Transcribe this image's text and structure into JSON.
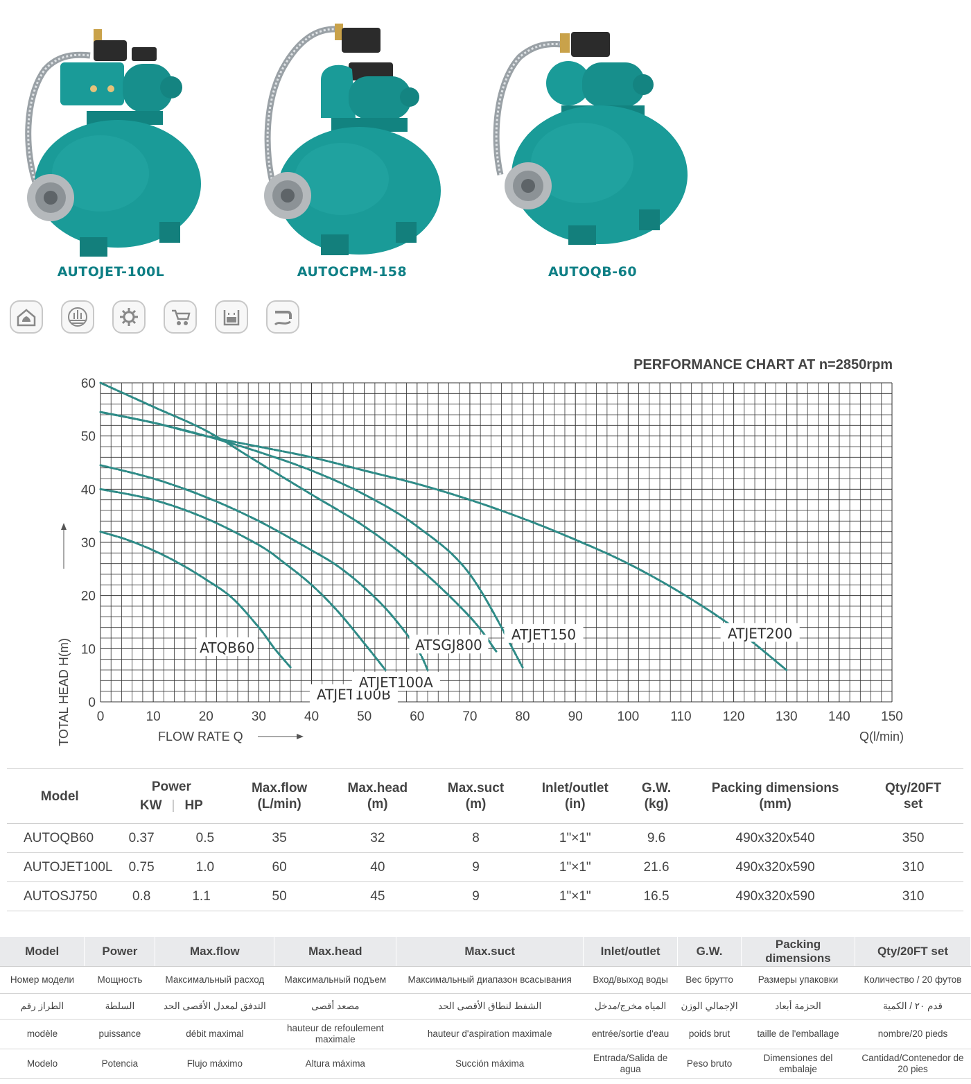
{
  "products": [
    {
      "name": "AUTOJET-100L"
    },
    {
      "name": "AUTOCPM-158"
    },
    {
      "name": "AUTOQB-60"
    }
  ],
  "icons": [
    "home-garden-icon",
    "farm-irrigation-icon",
    "gear-icon",
    "wheelbarrow-icon",
    "water-tank-icon",
    "water-outlet-icon"
  ],
  "colors": {
    "brand": "#0e7f85",
    "curve": "#2e8b87",
    "tank": "#1a9b98"
  },
  "chart_data": {
    "type": "line",
    "title": "PERFORMANCE CHART AT n=2850rpm",
    "ylabel": "TOTAL HEAD H(m)",
    "xlabel": "FLOW RATE Q",
    "xunit": "Q(l/min)",
    "xlim": [
      0,
      150
    ],
    "ylim": [
      0,
      60
    ],
    "xticks": [
      0,
      10,
      20,
      30,
      40,
      50,
      60,
      70,
      80,
      90,
      100,
      110,
      120,
      130,
      140,
      150
    ],
    "yticks": [
      0,
      10,
      20,
      30,
      40,
      50,
      60
    ],
    "grid": true,
    "series": [
      {
        "name": "ATQB60",
        "x": [
          0,
          5,
          10,
          15,
          20,
          25,
          30,
          33,
          36
        ],
        "y": [
          32,
          30.5,
          28.5,
          26,
          23,
          19.5,
          14,
          10,
          6.5
        ]
      },
      {
        "name": "ATJET100B",
        "x": [
          0,
          10,
          20,
          30,
          35,
          40,
          45,
          50,
          54
        ],
        "y": [
          40,
          38,
          34.5,
          29.5,
          26,
          22,
          17,
          11,
          6
        ]
      },
      {
        "name": "ATJET100A",
        "x": [
          0,
          10,
          20,
          30,
          40,
          45,
          50,
          55,
          60,
          62
        ],
        "y": [
          44.5,
          42,
          38.5,
          34,
          28.5,
          25.5,
          21.5,
          16.5,
          10,
          6
        ]
      },
      {
        "name": "ATSGJ800",
        "x": [
          0,
          10,
          20,
          30,
          40,
          50,
          60,
          70,
          75
        ],
        "y": [
          60,
          55.5,
          51,
          45,
          39,
          33,
          25.5,
          16,
          9.5
        ]
      },
      {
        "name": "ATJET150",
        "x": [
          0,
          10,
          20,
          30,
          40,
          50,
          60,
          70,
          80
        ],
        "y": [
          54.5,
          52.5,
          50,
          47,
          43.5,
          39,
          33,
          24,
          6.5
        ]
      },
      {
        "name": "ATJET200",
        "x": [
          0,
          10,
          20,
          30,
          40,
          50,
          60,
          70,
          80,
          90,
          100,
          110,
          120,
          130
        ],
        "y": [
          54.5,
          52.5,
          50,
          48,
          46,
          43.5,
          41,
          38,
          34.5,
          30.5,
          26,
          20.5,
          14,
          6
        ]
      }
    ],
    "labels": [
      {
        "text": "ATQB60",
        "series": "ATQB60"
      },
      {
        "text": "ATJET100B",
        "series": "ATJET100B"
      },
      {
        "text": "ATJET100A",
        "series": "ATJET100A"
      },
      {
        "text": "ATSGJ800",
        "series": "ATSGJ800"
      },
      {
        "text": "ATJET150",
        "series": "ATJET150"
      },
      {
        "text": "ATJET200",
        "series": "ATJET200"
      }
    ]
  },
  "specs": {
    "headers": {
      "model": "Model",
      "power": "Power",
      "kw": "KW",
      "hp": "HP",
      "maxflow": [
        "Max.flow",
        "(L/min)"
      ],
      "maxhead": [
        "Max.head",
        "(m)"
      ],
      "maxsuct": [
        "Max.suct",
        "(m)"
      ],
      "inlet": [
        "Inlet/outlet",
        "(in)"
      ],
      "gw": [
        "G.W.",
        "(kg)"
      ],
      "packing": [
        "Packing dimensions",
        "(mm)"
      ],
      "qty": [
        "Qty/20FT",
        "set"
      ]
    },
    "rows": [
      [
        "AUTOQB60",
        "0.37",
        "0.5",
        "35",
        "32",
        "8",
        "1\"×1\"",
        "9.6",
        "490x320x540",
        "350"
      ],
      [
        "AUTOJET100L",
        "0.75",
        "1.0",
        "60",
        "40",
        "9",
        "1\"×1\"",
        "21.6",
        "490x320x590",
        "310"
      ],
      [
        "AUTOSJ750",
        "0.8",
        "1.1",
        "50",
        "45",
        "9",
        "1\"×1\"",
        "16.5",
        "490x320x590",
        "310"
      ]
    ]
  },
  "glossary": {
    "headers": [
      "Model",
      "Power",
      "Max.flow",
      "Max.head",
      "Max.suct",
      "Inlet/outlet",
      "G.W.",
      "Packing dimensions",
      "Qty/20FT set"
    ],
    "rows": [
      [
        "Номер модели",
        "Мощность",
        "Максимальный расход",
        "Максимальный подъем",
        "Максимальный диапазон всасывания",
        "Вход/выход воды",
        "Вес брутто",
        "Размеры упаковки",
        "Количество / 20 футов"
      ],
      [
        "الطراز رقم",
        "السلطة",
        "التدفق لمعدل الأقصى الحد",
        "مصعد أقصى",
        "الشفط لنطاق الأقصى الحد",
        "المياه مخرج/مدخل",
        "الإجمالي الوزن",
        "الحزمة أبعاد",
        "قدم ٢٠ / الكمية"
      ],
      [
        "modèle",
        "puissance",
        "débit maximal",
        "hauteur de refoulement maximale",
        "hauteur d'aspiration maximale",
        "entrée/sortie d'eau",
        "poids brut",
        "taille de l'emballage",
        "nombre/20 pieds"
      ],
      [
        "Modelo",
        "Potencia",
        "Flujo máximo",
        "Altura máxima",
        "Succión máxima",
        "Entrada/Salida de agua",
        "Peso bruto",
        "Dimensiones del embalaje",
        "Cantidad/Contenedor de 20 pies"
      ]
    ]
  }
}
